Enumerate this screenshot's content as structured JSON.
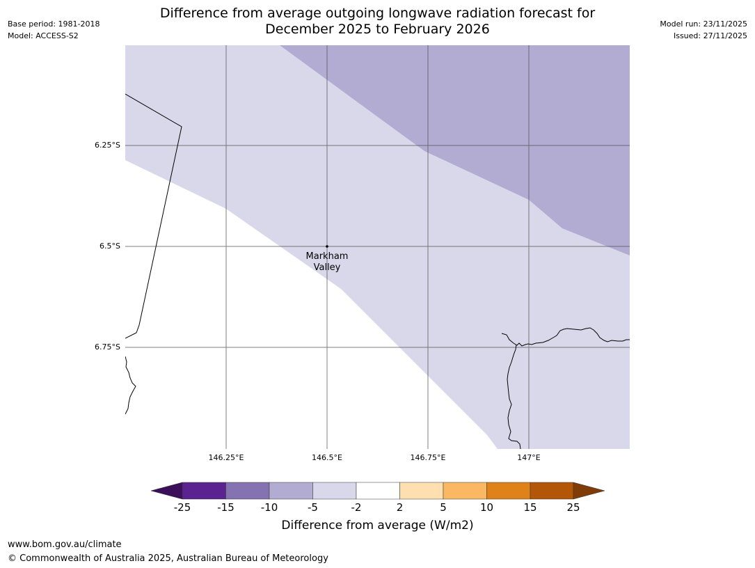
{
  "header": {
    "title_line1": "Difference from average outgoing longwave radiation forecast for",
    "title_line2": "December 2025 to February 2026",
    "base_period": "Base period: 1981-2018",
    "model": "Model: ACCESS-S2",
    "model_run": "Model run: 23/11/2025",
    "issued": "Issued: 27/11/2025"
  },
  "map": {
    "latitude_labels": [
      "6.25°S",
      "6.5°S",
      "6.75°S"
    ],
    "longitude_labels": [
      "146.25°E",
      "146.5°E",
      "146.75°E",
      "147°E"
    ],
    "place_name_line1": "Markham",
    "place_name_line2": "Valley",
    "colors": {
      "band_minus10_minus5": "#b2abd2",
      "band_minus5_minus2": "#d8d8ea",
      "band_minus2_2": "#ffffff"
    }
  },
  "legend": {
    "title": "Difference from average (W/m2)",
    "ticks": [
      "-25",
      "-15",
      "-10",
      "-5",
      "-2",
      "2",
      "5",
      "10",
      "15",
      "25"
    ],
    "colors": [
      "#3b0f5a",
      "#5a2390",
      "#8473b0",
      "#b2abd2",
      "#d8d8ea",
      "#ffffff",
      "#fedfb0",
      "#fbb862",
      "#e0821a",
      "#b35607",
      "#7f3b08"
    ]
  },
  "footer": {
    "website": "www.bom.gov.au/climate",
    "copyright": "© Commonwealth of Australia 2025, Australian Bureau of Meteorology"
  }
}
